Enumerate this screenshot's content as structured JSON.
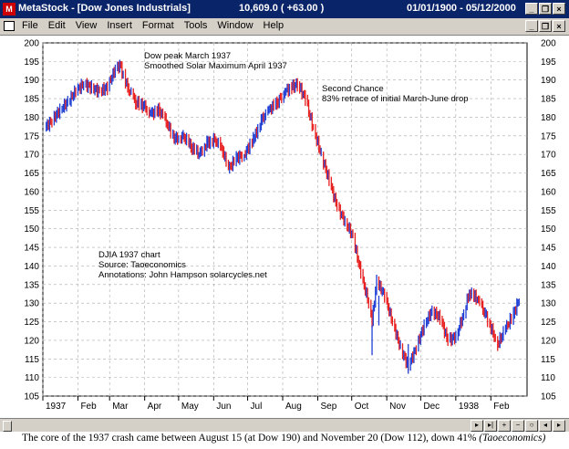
{
  "window": {
    "app_title": "MetaStock - [Dow Jones Industrials]",
    "price_readout": "10,609.0 ( +63.00 )",
    "date_range": "01/01/1900 - 05/12/2000",
    "app_icon": "ms-icon",
    "controls": [
      "minimize-icon",
      "restore-icon",
      "close-icon"
    ]
  },
  "menubar": {
    "items": [
      "File",
      "Edit",
      "View",
      "Insert",
      "Format",
      "Tools",
      "Window",
      "Help"
    ]
  },
  "annotations": {
    "peak_line1": "Dow peak March 1937",
    "peak_line2": "Smoothed Solar Maximum April 1937",
    "second_line1": "Second Chance",
    "second_line2": "83% retrace of initial March-June drop",
    "source_line1": "DJIA 1937 chart",
    "source_line2": "Source: Taoeconomics",
    "source_line3": "Annotations: John Hampson  solarcycles.net"
  },
  "chart_data": {
    "type": "line",
    "title": "",
    "xlabel": "",
    "ylabel": "",
    "ylim": [
      105,
      200
    ],
    "y_ticks": [
      105,
      110,
      115,
      120,
      125,
      130,
      135,
      140,
      145,
      150,
      155,
      160,
      165,
      170,
      175,
      180,
      185,
      190,
      195,
      200
    ],
    "x_tick_labels": [
      "1937",
      "Feb",
      "Mar",
      "Apr",
      "May",
      "Jun",
      "Jul",
      "Aug",
      "Sep",
      "Oct",
      "Nov",
      "Dec",
      "1938",
      "Feb"
    ],
    "grid": true,
    "series": [
      {
        "style": "daily bars, blue up / red down",
        "points": [
          [
            "1937-01-02",
            177
          ],
          [
            "1937-01-09",
            179
          ],
          [
            "1937-01-16",
            182
          ],
          [
            "1937-01-23",
            184
          ],
          [
            "1937-01-30",
            187
          ],
          [
            "1937-02-06",
            189
          ],
          [
            "1937-02-13",
            188
          ],
          [
            "1937-02-20",
            187
          ],
          [
            "1937-02-27",
            188
          ],
          [
            "1937-03-06",
            193
          ],
          [
            "1937-03-10",
            194
          ],
          [
            "1937-03-17",
            188
          ],
          [
            "1937-03-24",
            184
          ],
          [
            "1937-03-31",
            183
          ],
          [
            "1937-04-07",
            181
          ],
          [
            "1937-04-14",
            182
          ],
          [
            "1937-04-21",
            178
          ],
          [
            "1937-04-28",
            174
          ],
          [
            "1937-05-05",
            175
          ],
          [
            "1937-05-12",
            172
          ],
          [
            "1937-05-19",
            170
          ],
          [
            "1937-05-26",
            173
          ],
          [
            "1937-06-02",
            174
          ],
          [
            "1937-06-09",
            171
          ],
          [
            "1937-06-14",
            166
          ],
          [
            "1937-06-21",
            169
          ],
          [
            "1937-06-28",
            170
          ],
          [
            "1937-07-06",
            174
          ],
          [
            "1937-07-13",
            179
          ],
          [
            "1937-07-20",
            182
          ],
          [
            "1937-07-27",
            184
          ],
          [
            "1937-08-03",
            187
          ],
          [
            "1937-08-09",
            188
          ],
          [
            "1937-08-14",
            189
          ],
          [
            "1937-08-21",
            185
          ],
          [
            "1937-08-28",
            177
          ],
          [
            "1937-09-04",
            170
          ],
          [
            "1937-09-11",
            163
          ],
          [
            "1937-09-18",
            156
          ],
          [
            "1937-09-25",
            152
          ],
          [
            "1937-10-02",
            148
          ],
          [
            "1937-10-09",
            138
          ],
          [
            "1937-10-16",
            130
          ],
          [
            "1937-10-19",
            125
          ],
          [
            "1937-10-23",
            136
          ],
          [
            "1937-10-30",
            132
          ],
          [
            "1937-11-06",
            125
          ],
          [
            "1937-11-13",
            118
          ],
          [
            "1937-11-20",
            113
          ],
          [
            "1937-11-27",
            118
          ],
          [
            "1937-12-04",
            124
          ],
          [
            "1937-12-11",
            128
          ],
          [
            "1937-12-18",
            126
          ],
          [
            "1937-12-25",
            120
          ],
          [
            "1938-01-01",
            121
          ],
          [
            "1938-01-08",
            127
          ],
          [
            "1938-01-13",
            133
          ],
          [
            "1938-01-20",
            131
          ],
          [
            "1938-01-27",
            127
          ],
          [
            "1938-02-03",
            122
          ],
          [
            "1938-02-07",
            119
          ],
          [
            "1938-02-14",
            123
          ],
          [
            "1938-02-21",
            127
          ],
          [
            "1938-02-26",
            131
          ]
        ]
      }
    ]
  },
  "scrollbar": {
    "nav_icons": [
      "prev-icon",
      "next-icon",
      "zoom-in-icon",
      "zoom-out-icon",
      "fit-icon",
      "left-arrow-icon",
      "right-arrow-icon"
    ]
  },
  "caption": {
    "text": "The core of the 1937 crash came between August 15 (at Dow 190) and November 20 (Dow 112), down 41% ",
    "source": "(Taoeconomics)"
  }
}
